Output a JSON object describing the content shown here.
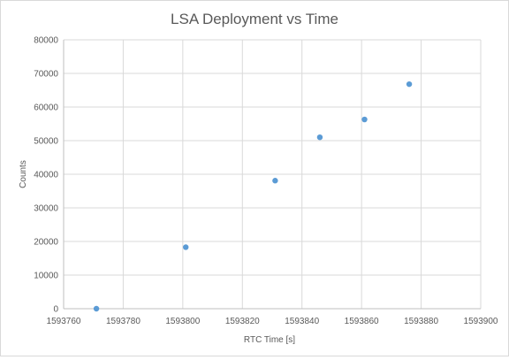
{
  "chart_data": {
    "type": "scatter",
    "title": "LSA Deployment vs Time",
    "xlabel": "RTC Time [s]",
    "ylabel": "Counts",
    "xlim": [
      1593760,
      1593900
    ],
    "ylim": [
      0,
      80000
    ],
    "xticks": [
      1593760,
      1593780,
      1593800,
      1593820,
      1593840,
      1593860,
      1593880,
      1593900
    ],
    "yticks": [
      0,
      10000,
      20000,
      30000,
      40000,
      50000,
      60000,
      70000,
      80000
    ],
    "grid": true,
    "legend": "none",
    "point_color": "#5b9bd5",
    "series": [
      {
        "points": [
          {
            "x": 1593771,
            "y": 0
          },
          {
            "x": 1593801,
            "y": 18300
          },
          {
            "x": 1593831,
            "y": 38100
          },
          {
            "x": 1593846,
            "y": 51000
          },
          {
            "x": 1593861,
            "y": 56300
          },
          {
            "x": 1593876,
            "y": 66800
          }
        ]
      }
    ]
  }
}
